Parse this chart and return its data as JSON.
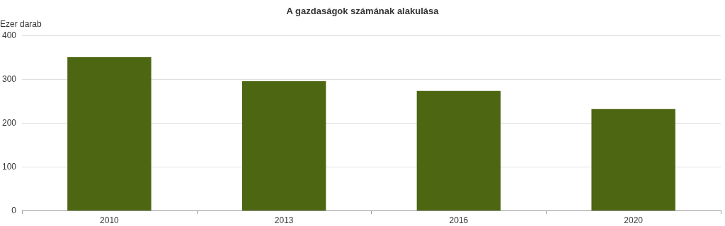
{
  "chart_data": {
    "type": "bar",
    "title": "A gazdaságok számának alakulása",
    "ylabel": "Ezer darab",
    "categories": [
      "2010",
      "2013",
      "2016",
      "2020"
    ],
    "values": [
      350,
      295,
      273,
      232
    ],
    "color": "#4d6612",
    "ylim": [
      0,
      400
    ],
    "yticks": [
      0,
      100,
      200,
      300,
      400
    ],
    "grid": "y"
  }
}
